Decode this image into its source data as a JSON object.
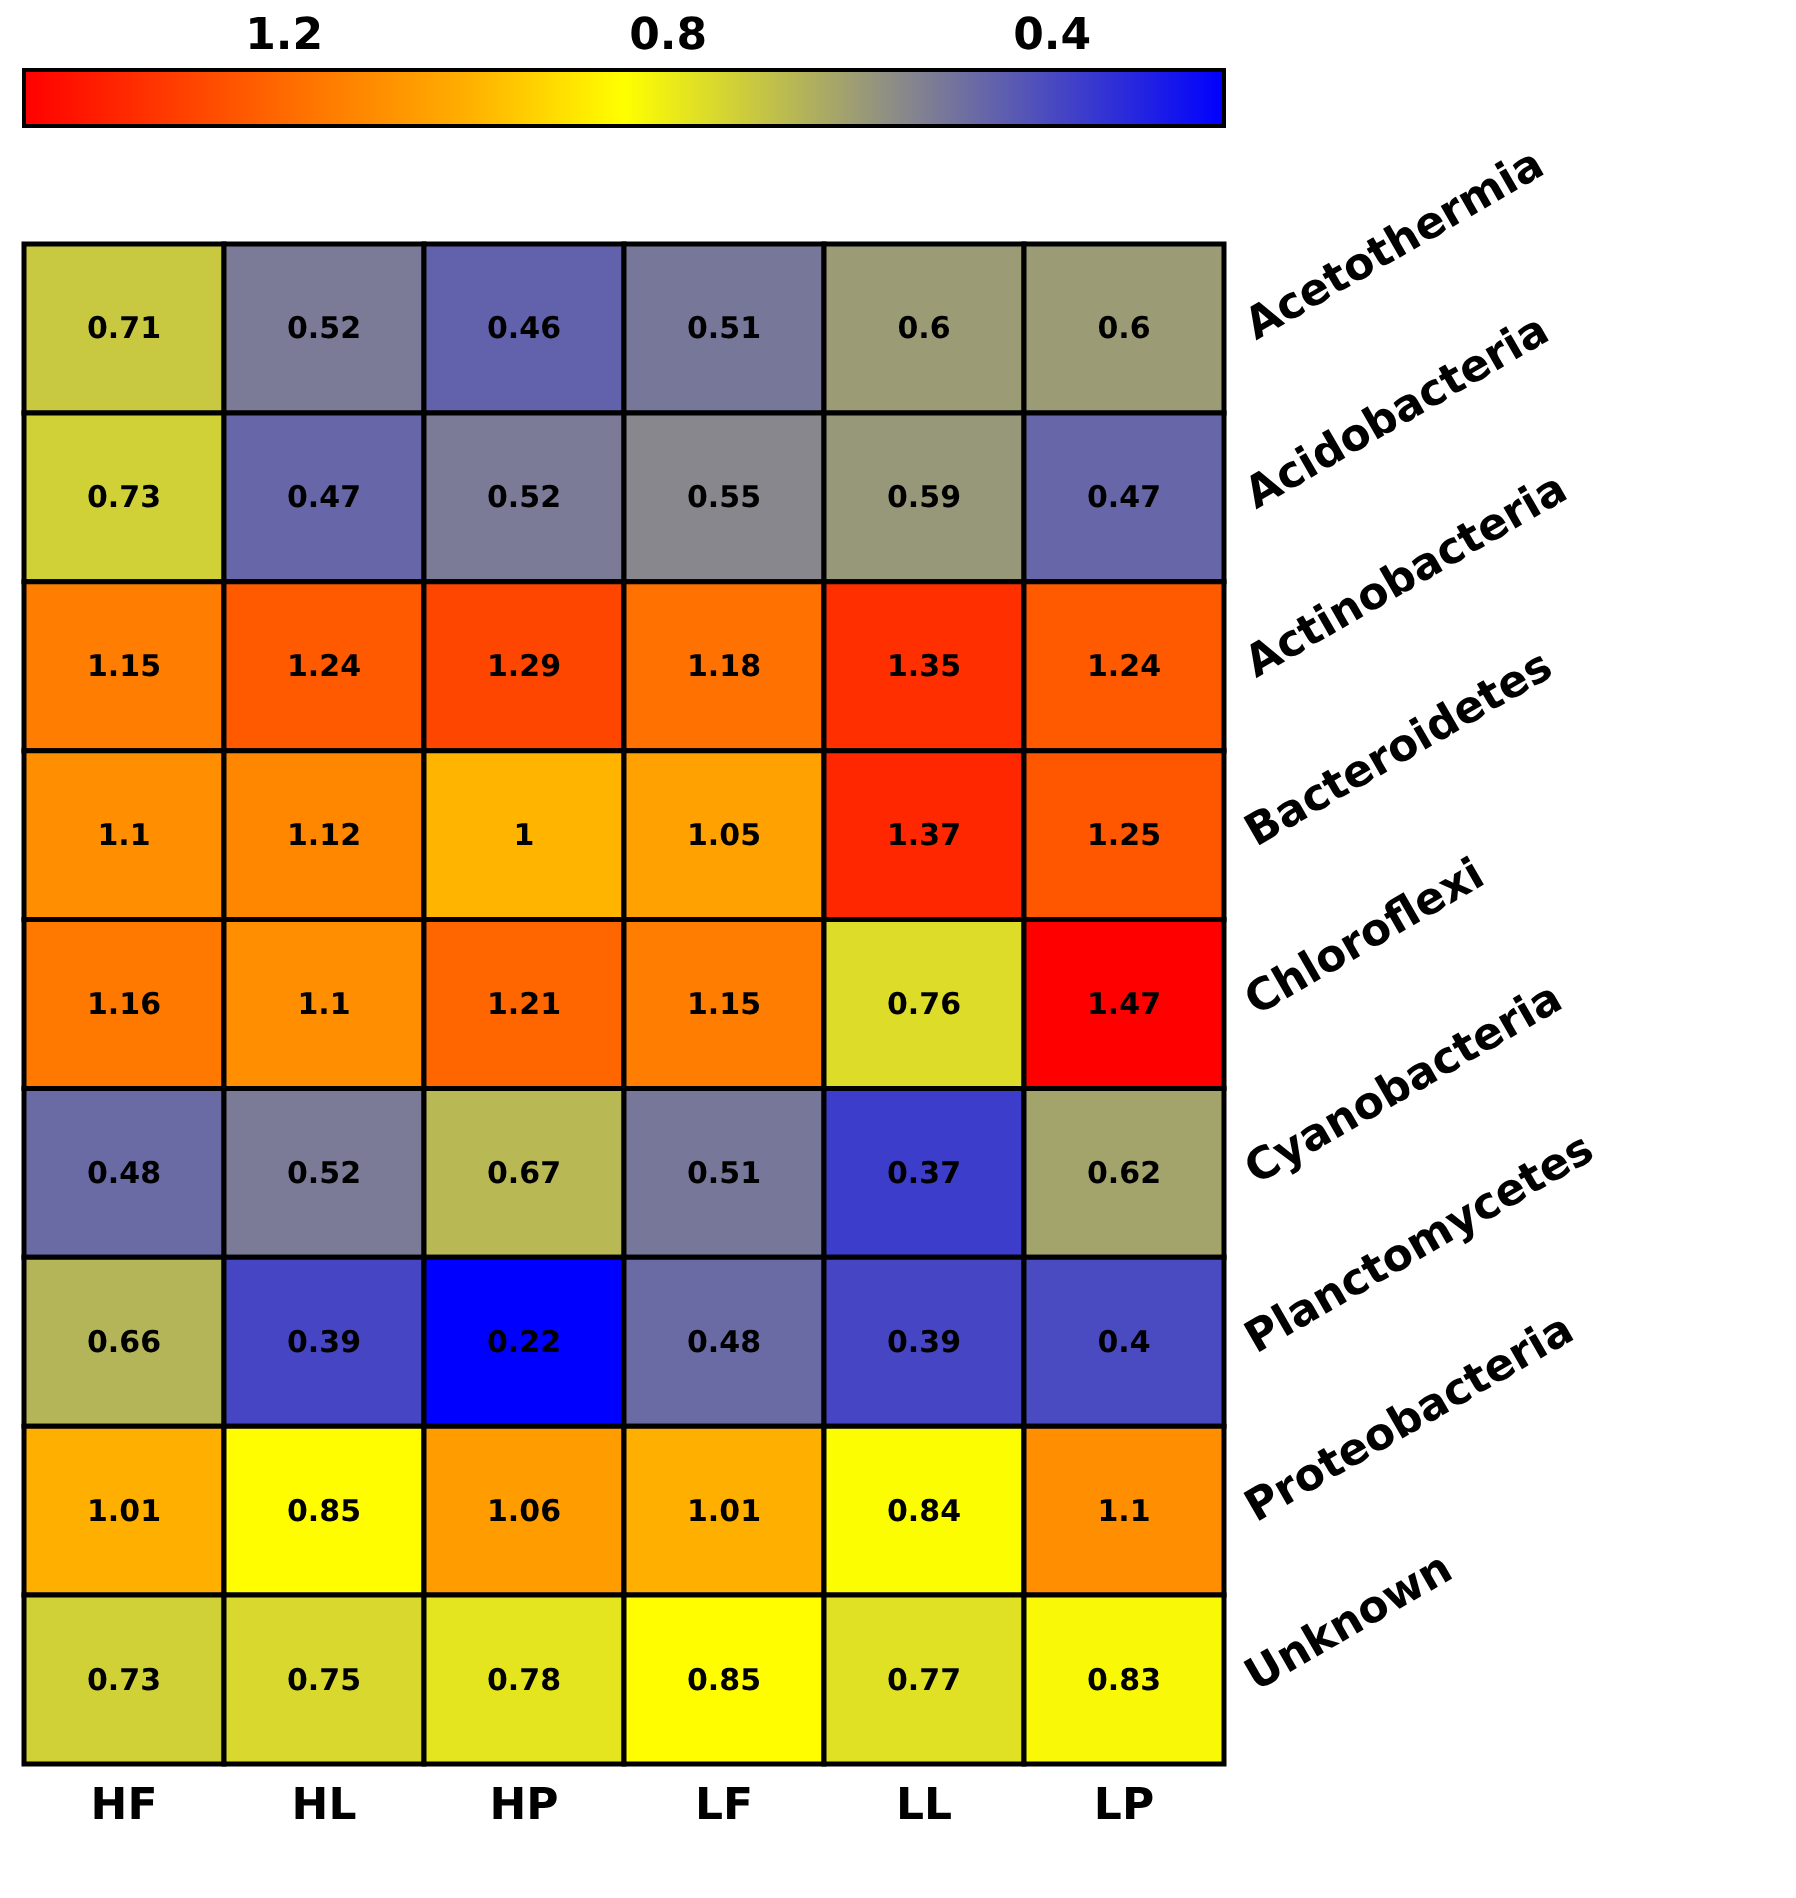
{
  "chart_data": {
    "type": "heatmap",
    "categories": [
      "HF",
      "HL",
      "HP",
      "LF",
      "LL",
      "LP"
    ],
    "y_categories": [
      "Acetothermia",
      "Acidobacteria",
      "Actinobacteria",
      "Bacteroidetes",
      "Chloroflexi",
      "Cyanobacteria",
      "Planctomycetes",
      "Proteobacteria",
      "Unknown"
    ],
    "cells": [
      [
        0.71,
        0.52,
        0.46,
        0.51,
        0.6,
        0.6
      ],
      [
        0.73,
        0.47,
        0.52,
        0.55,
        0.59,
        0.47
      ],
      [
        1.15,
        1.24,
        1.29,
        1.18,
        1.35,
        1.24
      ],
      [
        1.1,
        1.12,
        1,
        1.05,
        1.37,
        1.25
      ],
      [
        1.16,
        1.1,
        1.21,
        1.15,
        0.76,
        1.47
      ],
      [
        0.48,
        0.52,
        0.67,
        0.51,
        0.37,
        0.62
      ],
      [
        0.66,
        0.39,
        0.22,
        0.48,
        0.39,
        0.4
      ],
      [
        1.01,
        0.85,
        1.06,
        1.01,
        0.84,
        1.1
      ],
      [
        0.73,
        0.75,
        0.78,
        0.85,
        0.77,
        0.83
      ]
    ],
    "clim": [
      1.47,
      0.22
    ],
    "cticks": [
      1.2,
      0.8,
      0.4
    ],
    "data_labels": true
  }
}
